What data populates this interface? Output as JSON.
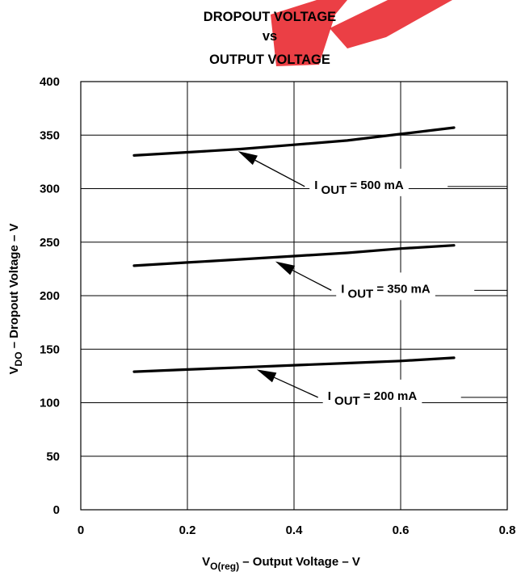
{
  "chart_data": {
    "type": "line",
    "title": [
      "DROPOUT VOLTAGE",
      "vs",
      "OUTPUT VOLTAGE"
    ],
    "xlabel": {
      "main": "V",
      "sub": "O(reg)",
      "rest": " – Output Voltage – V"
    },
    "ylabel": {
      "main": "V",
      "sub": "DO",
      "rest": " – Dropout Voltage – V"
    },
    "xlim": [
      0,
      0.8
    ],
    "ylim": [
      0,
      400
    ],
    "xticks": [
      0,
      0.2,
      0.4,
      0.6,
      0.8
    ],
    "xtick_labels": [
      "0",
      "0.2",
      "0.4",
      "0.6",
      "0.8"
    ],
    "yticks": [
      0,
      50,
      100,
      150,
      200,
      250,
      300,
      350,
      400
    ],
    "ytick_labels": [
      "0",
      "50",
      "100",
      "150",
      "200",
      "250",
      "300",
      "350",
      "400"
    ],
    "grid": true,
    "series": [
      {
        "name": "IOUT = 500 mA",
        "label_main": "I",
        "label_sub": "OUT",
        "label_rest": " = 500 mA",
        "x": [
          0.1,
          0.2,
          0.3,
          0.4,
          0.5,
          0.6,
          0.7
        ],
        "y": [
          331,
          334,
          337,
          341,
          345,
          351,
          357
        ]
      },
      {
        "name": "IOUT = 350 mA",
        "label_main": "I",
        "label_sub": "OUT",
        "label_rest": " = 350 mA",
        "x": [
          0.1,
          0.2,
          0.3,
          0.4,
          0.5,
          0.6,
          0.7
        ],
        "y": [
          228,
          231,
          234,
          237,
          240,
          244,
          247
        ]
      },
      {
        "name": "IOUT = 200 mA",
        "label_main": "I",
        "label_sub": "OUT",
        "label_rest": " = 200 mA",
        "x": [
          0.1,
          0.2,
          0.3,
          0.4,
          0.5,
          0.6,
          0.7
        ],
        "y": [
          129,
          131,
          133,
          135,
          137,
          139,
          142
        ]
      }
    ],
    "annotations": [
      {
        "series": 0,
        "arrow_tail": [
          0.42,
          302
        ],
        "arrow_head": [
          0.295,
          335
        ]
      },
      {
        "series": 1,
        "arrow_tail": [
          0.47,
          205
        ],
        "arrow_head": [
          0.365,
          232
        ]
      },
      {
        "series": 2,
        "arrow_tail": [
          0.445,
          105
        ],
        "arrow_head": [
          0.33,
          131
        ]
      }
    ]
  }
}
